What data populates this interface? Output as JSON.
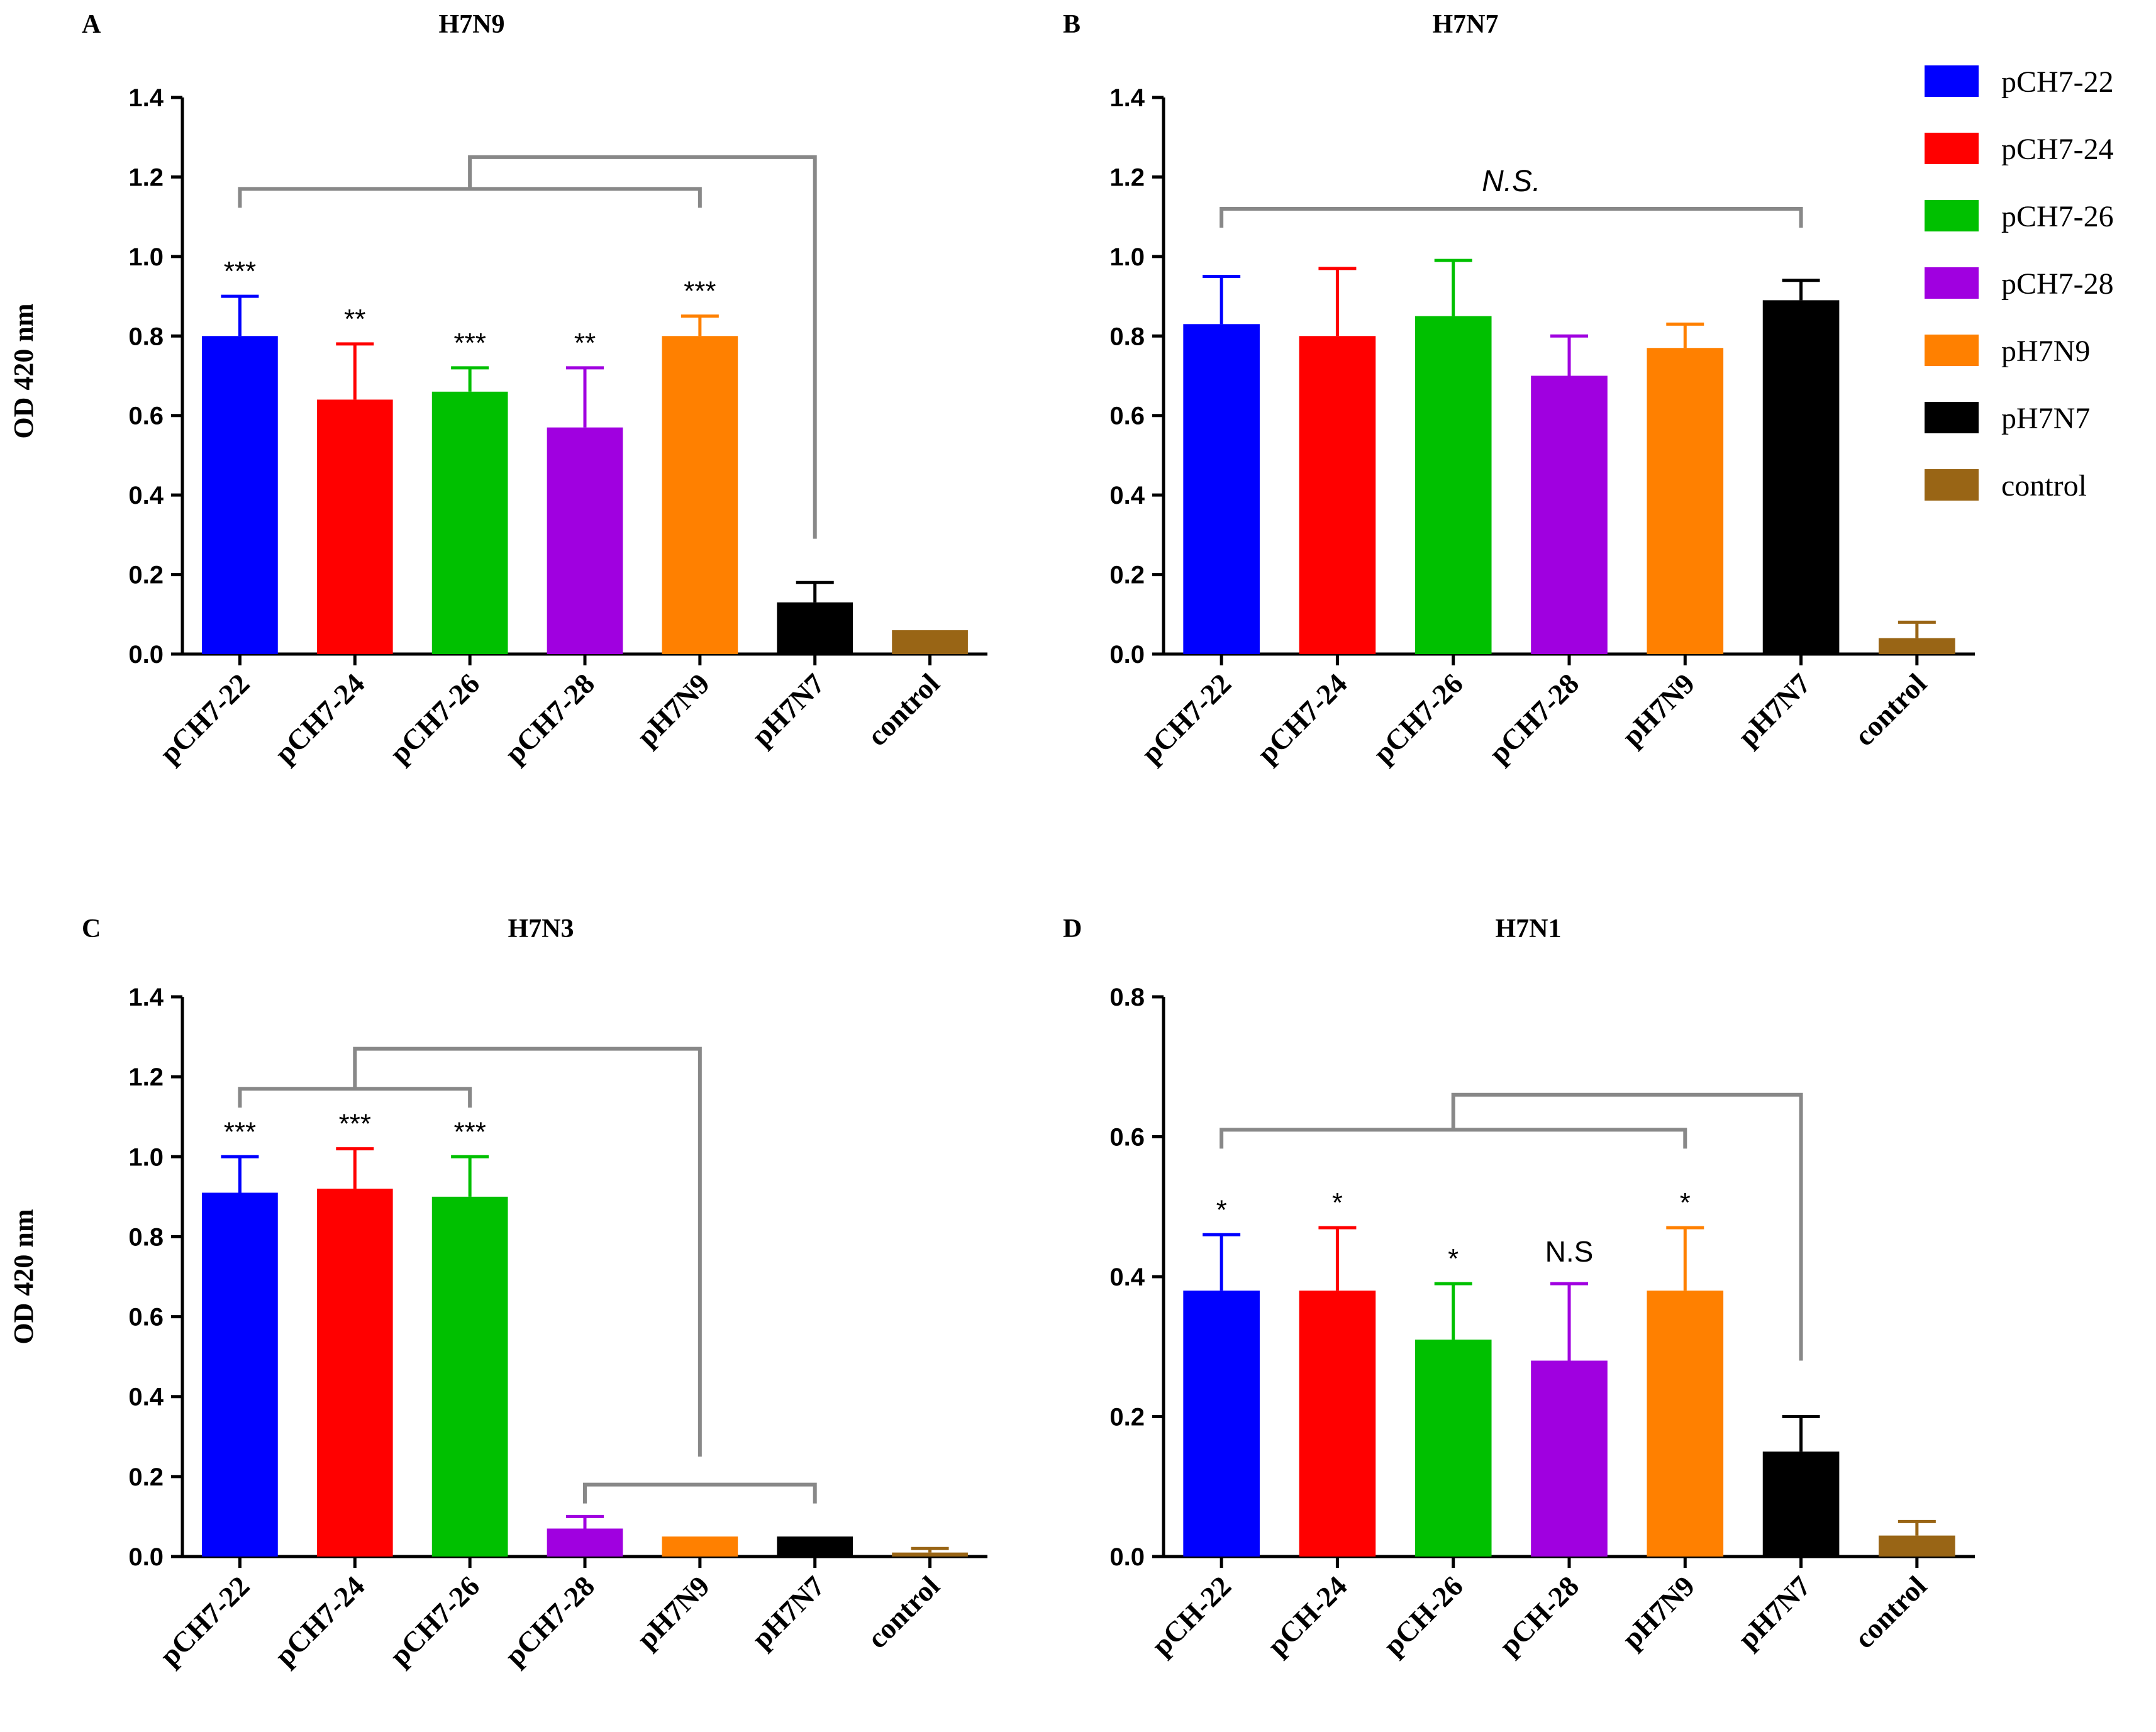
{
  "figure_title": "",
  "legend": [
    {
      "label": "pCH7-22",
      "color": "#0000ff"
    },
    {
      "label": "pCH7-24",
      "color": "#ff0000"
    },
    {
      "label": "pCH7-26",
      "color": "#00c000"
    },
    {
      "label": "pCH7-28",
      "color": "#a000e0"
    },
    {
      "label": "pH7N9",
      "color": "#ff8000"
    },
    {
      "label": "pH7N7",
      "color": "#000000"
    },
    {
      "label": "control",
      "color": "#996515"
    }
  ],
  "chart_data": [
    {
      "type": "bar",
      "panel": "A",
      "title": "H7N9",
      "ylabel": "OD 420 nm",
      "xlabel": "",
      "ylim": [
        0,
        1.4
      ],
      "yticks": [
        "0.0",
        "0.2",
        "0.4",
        "0.6",
        "0.8",
        "1.0",
        "1.2",
        "1.4"
      ],
      "categories": [
        "pCH7-22",
        "pCH7-24",
        "pCH7-26",
        "pCH7-28",
        "pH7N9",
        "pH7N7",
        "control"
      ],
      "values": [
        0.8,
        0.64,
        0.66,
        0.57,
        0.8,
        0.13,
        0.06
      ],
      "errors": [
        0.1,
        0.14,
        0.06,
        0.15,
        0.05,
        0.05,
        0.0
      ],
      "colors": [
        "#0000ff",
        "#ff0000",
        "#00c000",
        "#a000e0",
        "#ff8000",
        "#000000",
        "#996515"
      ],
      "significance": [
        "***",
        "**",
        "***",
        "**",
        "***",
        "",
        ""
      ],
      "brackets": [
        {
          "from": 0,
          "to": 4,
          "y": 1.17
        },
        {
          "connect_x": 2.0,
          "to_x": 5,
          "y": 1.25,
          "drop_to": 0.29
        }
      ],
      "bracket_label": ""
    },
    {
      "type": "bar",
      "panel": "B",
      "title": "H7N7",
      "ylabel": "",
      "xlabel": "",
      "ylim": [
        0,
        1.4
      ],
      "yticks": [
        "0.0",
        "0.2",
        "0.4",
        "0.6",
        "0.8",
        "1.0",
        "1.2",
        "1.4"
      ],
      "categories": [
        "pCH7-22",
        "pCH7-24",
        "pCH7-26",
        "pCH7-28",
        "pH7N9",
        "pH7N7",
        "control"
      ],
      "values": [
        0.83,
        0.8,
        0.85,
        0.7,
        0.77,
        0.89,
        0.04
      ],
      "errors": [
        0.12,
        0.17,
        0.14,
        0.1,
        0.06,
        0.05,
        0.04
      ],
      "colors": [
        "#0000ff",
        "#ff0000",
        "#00c000",
        "#a000e0",
        "#ff8000",
        "#000000",
        "#996515"
      ],
      "significance": [
        "",
        "",
        "",
        "",
        "",
        "",
        ""
      ],
      "brackets": [
        {
          "from": 0,
          "to": 5,
          "y": 1.12
        }
      ],
      "bracket_label": "N.S."
    },
    {
      "type": "bar",
      "panel": "C",
      "title": "H7N3",
      "ylabel": "OD 420 nm",
      "xlabel": "",
      "ylim": [
        0,
        1.4
      ],
      "yticks": [
        "0.0",
        "0.2",
        "0.4",
        "0.6",
        "0.8",
        "1.0",
        "1.2",
        "1.4"
      ],
      "categories": [
        "pCH7-22",
        "pCH7-24",
        "pCH7-26",
        "pCH7-28",
        "pH7N9",
        "pH7N7",
        "control"
      ],
      "values": [
        0.91,
        0.92,
        0.9,
        0.07,
        0.05,
        0.05,
        0.01
      ],
      "errors": [
        0.09,
        0.1,
        0.1,
        0.03,
        0.0,
        0.0,
        0.01
      ],
      "colors": [
        "#0000ff",
        "#ff0000",
        "#00c000",
        "#a000e0",
        "#ff8000",
        "#000000",
        "#996515"
      ],
      "significance": [
        "***",
        "***",
        "***",
        "",
        "",
        "",
        ""
      ],
      "brackets": [
        {
          "from": 0,
          "to": 2,
          "y": 1.17
        },
        {
          "connect_x": 1.0,
          "to_x": 4,
          "y": 1.27,
          "drop_to": 0.25
        },
        {
          "from": 3,
          "to": 5,
          "y": 0.18
        }
      ],
      "bracket_label": ""
    },
    {
      "type": "bar",
      "panel": "D",
      "title": "H7N1",
      "ylabel": "",
      "xlabel": "",
      "ylim": [
        0,
        0.8
      ],
      "yticks": [
        "0.0",
        "0.2",
        "0.4",
        "0.6",
        "0.8"
      ],
      "categories": [
        "pCH-22",
        "pCH-24",
        "pCH-26",
        "pCH-28",
        "pH7N9",
        "pH7N7",
        "control"
      ],
      "values": [
        0.38,
        0.38,
        0.31,
        0.28,
        0.38,
        0.15,
        0.03
      ],
      "errors": [
        0.08,
        0.09,
        0.08,
        0.11,
        0.09,
        0.05,
        0.02
      ],
      "colors": [
        "#0000ff",
        "#ff0000",
        "#00c000",
        "#a000e0",
        "#ff8000",
        "#000000",
        "#996515"
      ],
      "significance": [
        "*",
        "*",
        "*",
        "N.S",
        "*",
        "",
        ""
      ],
      "brackets": [
        {
          "from": 0,
          "to": 4,
          "y": 0.61
        },
        {
          "connect_x": 2.0,
          "to_x": 5,
          "y": 0.66,
          "drop_to": 0.28
        }
      ],
      "bracket_label": ""
    }
  ]
}
